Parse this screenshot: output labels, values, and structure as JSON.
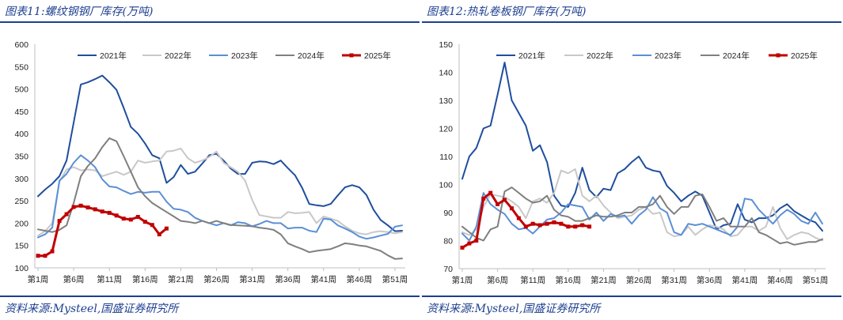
{
  "colors": {
    "y2021": "#1f4e9e",
    "y2022": "#c8c8c8",
    "y2023": "#5b8fd6",
    "y2024": "#7f7f7f",
    "y2025": "#c00000",
    "rule": "#1d3f8f"
  },
  "chart_data": [
    {
      "type": "line",
      "title": "图表11:螺纹钢钢厂库存(万吨)",
      "source": "资料来源:Mysteel,国盛证券研究所",
      "xlabel": "",
      "ylabel": "",
      "ylim": [
        100,
        600
      ],
      "yticks": [
        "100",
        "150",
        "200",
        "250",
        "300",
        "350",
        "400",
        "450",
        "500",
        "550",
        "600"
      ],
      "xticks": [
        "第1周",
        "第6周",
        "第11周",
        "第16周",
        "第21周",
        "第26周",
        "第31周",
        "第36周",
        "第41周",
        "第46周",
        "第51周"
      ],
      "legend": [
        "2021年",
        "2022年",
        "2023年",
        "2024年",
        "2025年"
      ],
      "series": [
        {
          "name": "2021年",
          "key": "y2021",
          "markers": false,
          "values": [
            260,
            275,
            288,
            305,
            340,
            425,
            510,
            515,
            522,
            530,
            515,
            498,
            458,
            415,
            400,
            378,
            352,
            345,
            290,
            303,
            330,
            310,
            315,
            333,
            352,
            355,
            340,
            322,
            310,
            310,
            335,
            338,
            337,
            332,
            340,
            323,
            307,
            279,
            243,
            240,
            238,
            243,
            262,
            280,
            285,
            280,
            263,
            230,
            207,
            195,
            182,
            183
          ]
        },
        {
          "name": "2022年",
          "key": "y2022",
          "markers": false,
          "values": [
            172,
            182,
            200,
            293,
            320,
            325,
            318,
            320,
            318,
            305,
            310,
            315,
            308,
            315,
            340,
            335,
            338,
            340,
            360,
            362,
            367,
            345,
            335,
            340,
            348,
            360,
            335,
            325,
            315,
            295,
            252,
            218,
            215,
            212,
            212,
            225,
            222,
            223,
            225,
            200,
            215,
            210,
            205,
            193,
            183,
            177,
            175,
            180,
            182,
            180,
            177,
            180
          ]
        },
        {
          "name": "2023年",
          "key": "y2023",
          "markers": false,
          "values": [
            168,
            175,
            190,
            295,
            310,
            335,
            352,
            340,
            325,
            298,
            282,
            280,
            272,
            265,
            270,
            268,
            270,
            270,
            248,
            232,
            230,
            225,
            212,
            205,
            200,
            195,
            200,
            195,
            202,
            200,
            193,
            198,
            205,
            200,
            200,
            188,
            190,
            190,
            183,
            180,
            210,
            208,
            195,
            188,
            180,
            170,
            165,
            168,
            172,
            176,
            192,
            195
          ]
        },
        {
          "name": "2024年",
          "key": "y2024",
          "markers": false,
          "values": [
            186,
            183,
            180,
            185,
            195,
            245,
            305,
            328,
            345,
            370,
            390,
            383,
            350,
            315,
            280,
            260,
            245,
            235,
            225,
            215,
            205,
            203,
            200,
            205,
            200,
            205,
            200,
            196,
            195,
            194,
            193,
            190,
            188,
            185,
            175,
            155,
            148,
            142,
            135,
            138,
            140,
            142,
            148,
            155,
            153,
            150,
            148,
            143,
            138,
            128,
            120,
            121
          ]
        },
        {
          "name": "2025年",
          "key": "y2025",
          "markers": true,
          "values": [
            127,
            127,
            137,
            205,
            220,
            236,
            239,
            235,
            231,
            226,
            223,
            217,
            210,
            208,
            214,
            203,
            196,
            175,
            188
          ]
        }
      ]
    },
    {
      "type": "line",
      "title": "图表12:热轧卷板钢厂库存(万吨)",
      "source": "资料来源:Mysteel,国盛证券研究所",
      "xlabel": "",
      "ylabel": "",
      "ylim": [
        70,
        150
      ],
      "yticks": [
        "70",
        "80",
        "90",
        "100",
        "110",
        "120",
        "130",
        "140",
        "150"
      ],
      "xticks": [
        "第1周",
        "第6周",
        "第11周",
        "第16周",
        "第21周",
        "第26周",
        "第31周",
        "第36周",
        "第41周",
        "第46周",
        "第51周"
      ],
      "legend": [
        "2021年",
        "2022年",
        "2023年",
        "2024年",
        "2025年"
      ],
      "series": [
        {
          "name": "2021年",
          "key": "y2021",
          "markers": false,
          "values": [
            102,
            110,
            113,
            120,
            121,
            132,
            143.5,
            130,
            125.5,
            121,
            112,
            114,
            108,
            96,
            92.5,
            92,
            97,
            106,
            98,
            95.5,
            98.5,
            98,
            104,
            105.5,
            108,
            110,
            106,
            105,
            104.5,
            99.5,
            97,
            94,
            96,
            97.5,
            96,
            90,
            84,
            85.5,
            86,
            93,
            87.5,
            86.5,
            88,
            88,
            89,
            91.5,
            93,
            90.5,
            89,
            87.5,
            86.5,
            83.5
          ]
        },
        {
          "name": "2022年",
          "key": "y2022",
          "markers": false,
          "values": [
            83,
            82,
            84,
            92,
            96.5,
            96,
            95.5,
            94,
            92,
            88,
            94,
            95,
            93.5,
            97,
            105,
            104,
            105.5,
            96,
            94,
            96,
            92.5,
            90,
            88,
            88.5,
            89,
            91,
            92,
            89.5,
            90,
            83,
            81.5,
            82,
            85,
            82,
            84,
            85.5,
            85,
            84,
            81.5,
            82,
            85,
            85,
            83.5,
            85,
            92,
            84.5,
            80.5,
            82,
            83,
            82.5,
            81,
            80
          ]
        },
        {
          "name": "2023年",
          "key": "y2023",
          "markers": false,
          "values": [
            82.5,
            80,
            85,
            97,
            93,
            91,
            89.5,
            86,
            84,
            84.5,
            82.5,
            85,
            87.5,
            88,
            90,
            93,
            92.5,
            92,
            87.5,
            90,
            87,
            89.5,
            88.5,
            89,
            86,
            89,
            91,
            95.5,
            91.5,
            90,
            83,
            82,
            86,
            85.5,
            86,
            85,
            84,
            83,
            82,
            85,
            95,
            94.5,
            91,
            88.5,
            86,
            89,
            91,
            89.5,
            87,
            86,
            90,
            86
          ]
        },
        {
          "name": "2024年",
          "key": "y2024",
          "markers": false,
          "values": [
            85,
            83,
            81,
            80,
            84,
            85,
            97.5,
            99,
            97,
            95,
            93.5,
            94,
            96,
            91,
            89,
            88.5,
            87,
            87,
            88,
            89,
            88.5,
            88.5,
            89,
            90,
            90,
            92,
            92,
            93,
            96,
            92,
            89.5,
            92,
            92,
            96,
            96.5,
            92,
            87,
            88,
            85,
            85,
            85,
            88,
            83,
            82,
            80.5,
            79,
            79.5,
            78.5,
            79,
            79.5,
            79.5,
            80.5
          ]
        },
        {
          "name": "2025年",
          "key": "y2025",
          "markers": true,
          "values": [
            77.5,
            79,
            80,
            95,
            97,
            93,
            94.5,
            91.5,
            88,
            85,
            86,
            85.5,
            86,
            86.5,
            86,
            85,
            85,
            85.5,
            85
          ]
        }
      ]
    }
  ]
}
